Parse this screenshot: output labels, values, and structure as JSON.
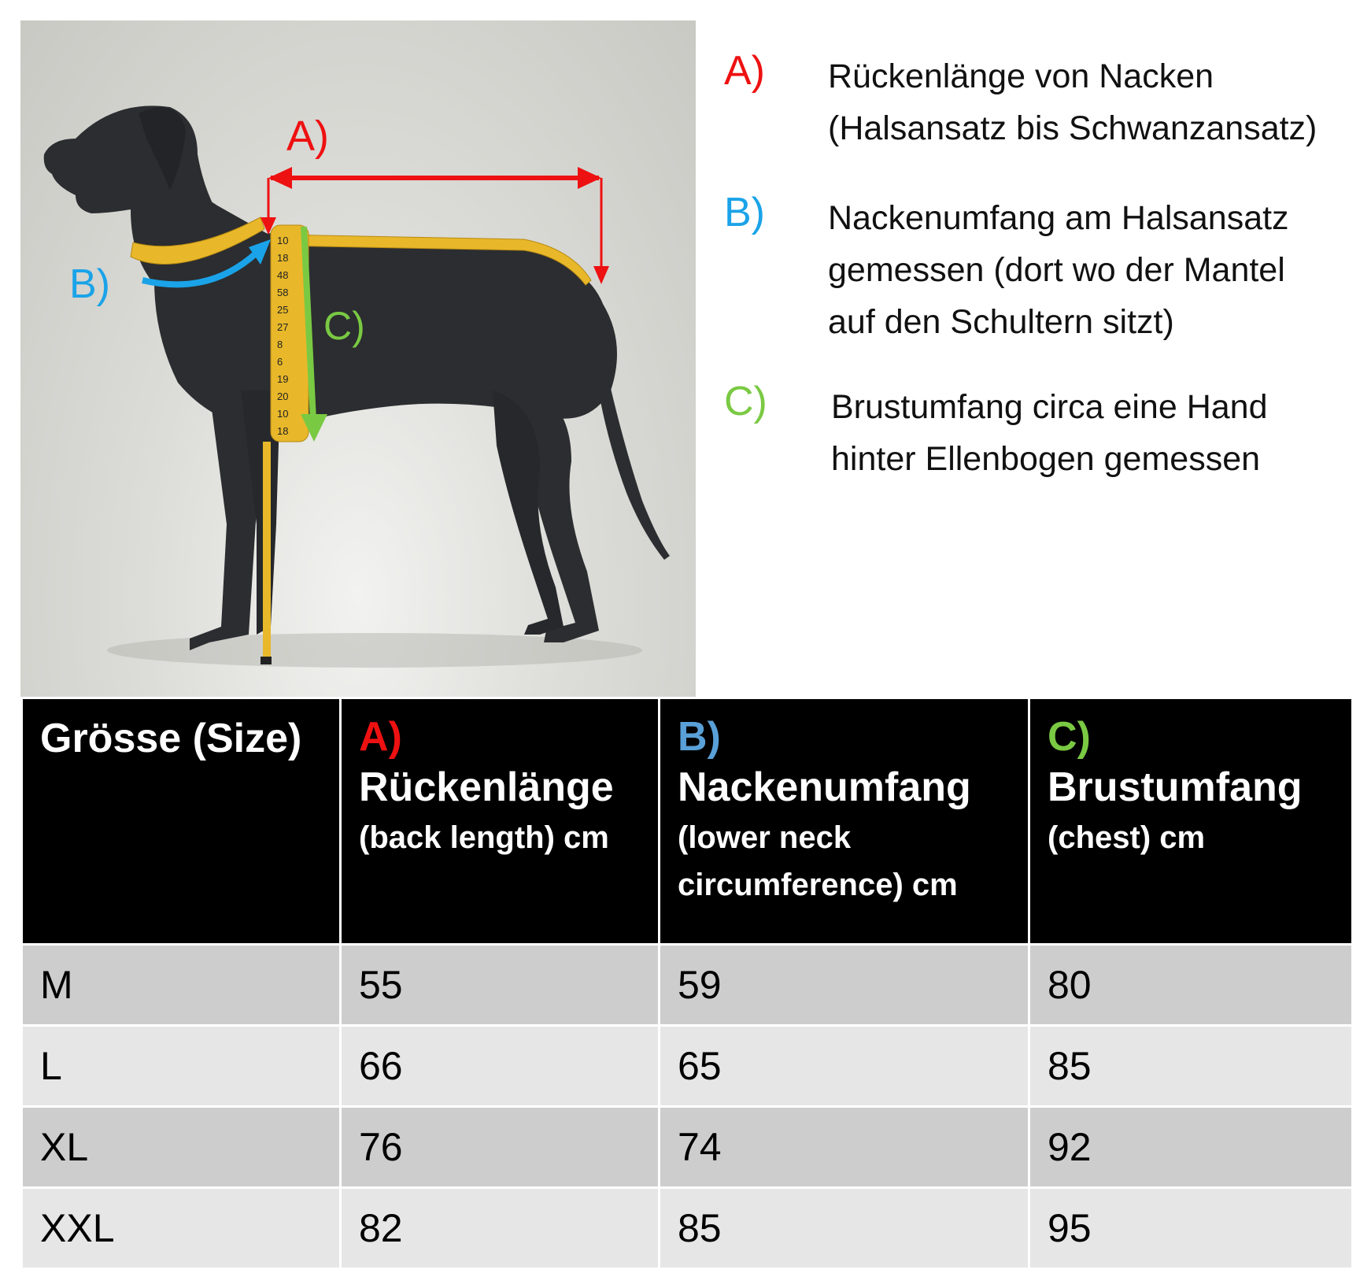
{
  "diagram": {
    "label_a": "A)",
    "label_b": "B)",
    "label_c": "C)",
    "tape_numbers": [
      "10",
      "18",
      "48",
      "58",
      "25",
      "27",
      "8",
      "6",
      "19",
      "20",
      "10",
      "18"
    ]
  },
  "legend": [
    {
      "letter": "A)",
      "color": "#ee1111",
      "text": "Rückenlänge von Nacken\n(Halsansatz bis Schwanzansatz)"
    },
    {
      "letter": "B)",
      "color": "#1aa3e8",
      "text": "Nackenumfang am Halsansatz\ngemessen (dort wo der Mantel\nauf den Schultern sitzt)"
    },
    {
      "letter": "C)",
      "color": "#7ac943",
      "text": "Brustumfang circa eine Hand\nhinter Ellenbogen gemessen"
    }
  ],
  "table": {
    "header_size": "Grösse (Size)",
    "columns": [
      {
        "letter": "A)",
        "color": "#ee1111",
        "name": "Rückenlänge",
        "sub": "(back length) cm"
      },
      {
        "letter": "B)",
        "color": "#5aa0d8",
        "name": "Nackenumfang",
        "sub": "(lower neck circumference) cm"
      },
      {
        "letter": "C)",
        "color": "#7ac943",
        "name": "Brustumfang",
        "sub": "(chest) cm"
      }
    ],
    "rows": [
      {
        "size": "M",
        "values": [
          "55",
          "59",
          "80"
        ]
      },
      {
        "size": "L",
        "values": [
          "66",
          "65",
          "85"
        ]
      },
      {
        "size": "XL",
        "values": [
          "76",
          "74",
          "92"
        ]
      },
      {
        "size": "XXL",
        "values": [
          "82",
          "85",
          "95"
        ]
      }
    ]
  }
}
